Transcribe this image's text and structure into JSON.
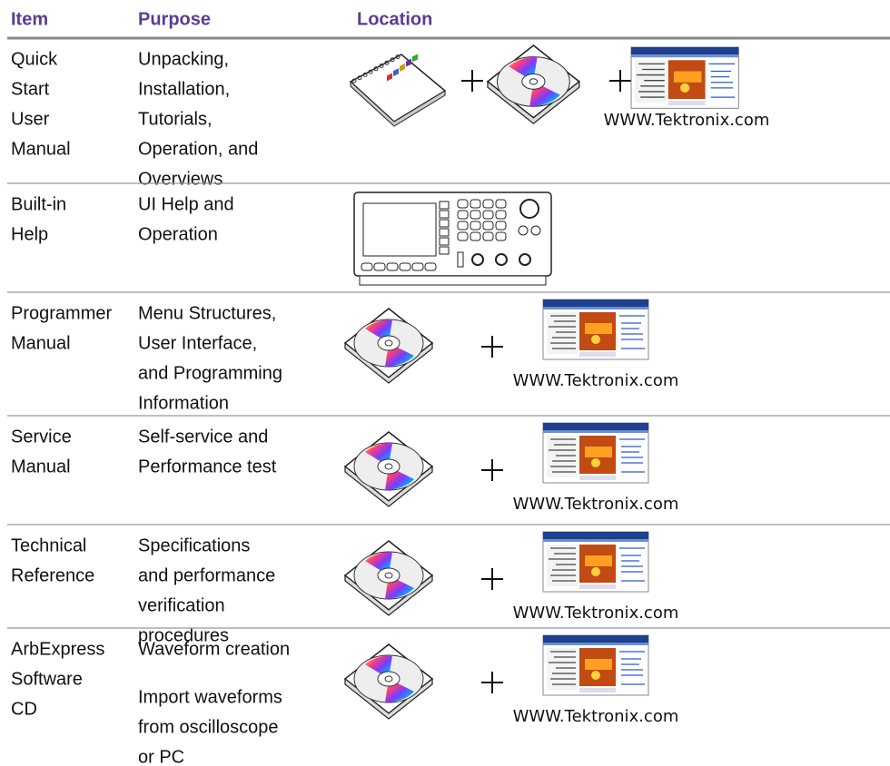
{
  "header": [
    "Item",
    "Purpose",
    "Location"
  ],
  "rows": [
    {
      "item": [
        "Quick",
        "Start",
        "User",
        "Manual"
      ],
      "purpose": [
        [
          "Unpacking,",
          "Installation,",
          "Tutorials,",
          "Operation, and",
          "Overviews"
        ]
      ],
      "caption": "WWW.Tektronix.com"
    },
    {
      "item": [
        "Built-in",
        "Help"
      ],
      "purpose": [
        [
          "UI Help and",
          "Operation"
        ]
      ]
    },
    {
      "item": [
        "Programmer",
        "Manual"
      ],
      "purpose": [
        [
          "Menu Structures,",
          "User Interface,",
          "and Programming",
          "Information"
        ]
      ],
      "caption": "WWW.Tektronix.com"
    },
    {
      "item": [
        "Service",
        "Manual"
      ],
      "purpose": [
        [
          "Self-service and",
          "Performance test"
        ]
      ],
      "caption": "WWW.Tektronix.com"
    },
    {
      "item": [
        "Technical",
        "Reference"
      ],
      "purpose": [
        [
          "Specifications",
          "and performance",
          "verification",
          "procedures"
        ]
      ],
      "caption": "WWW.Tektronix.com"
    },
    {
      "item": [
        "ArbExpress",
        "Software",
        "CD"
      ],
      "purpose": [
        [
          "Waveform creation"
        ],
        [
          "Import waveforms",
          "from oscilloscope",
          "or PC"
        ]
      ],
      "caption": "WWW.Tektronix.com"
    }
  ]
}
